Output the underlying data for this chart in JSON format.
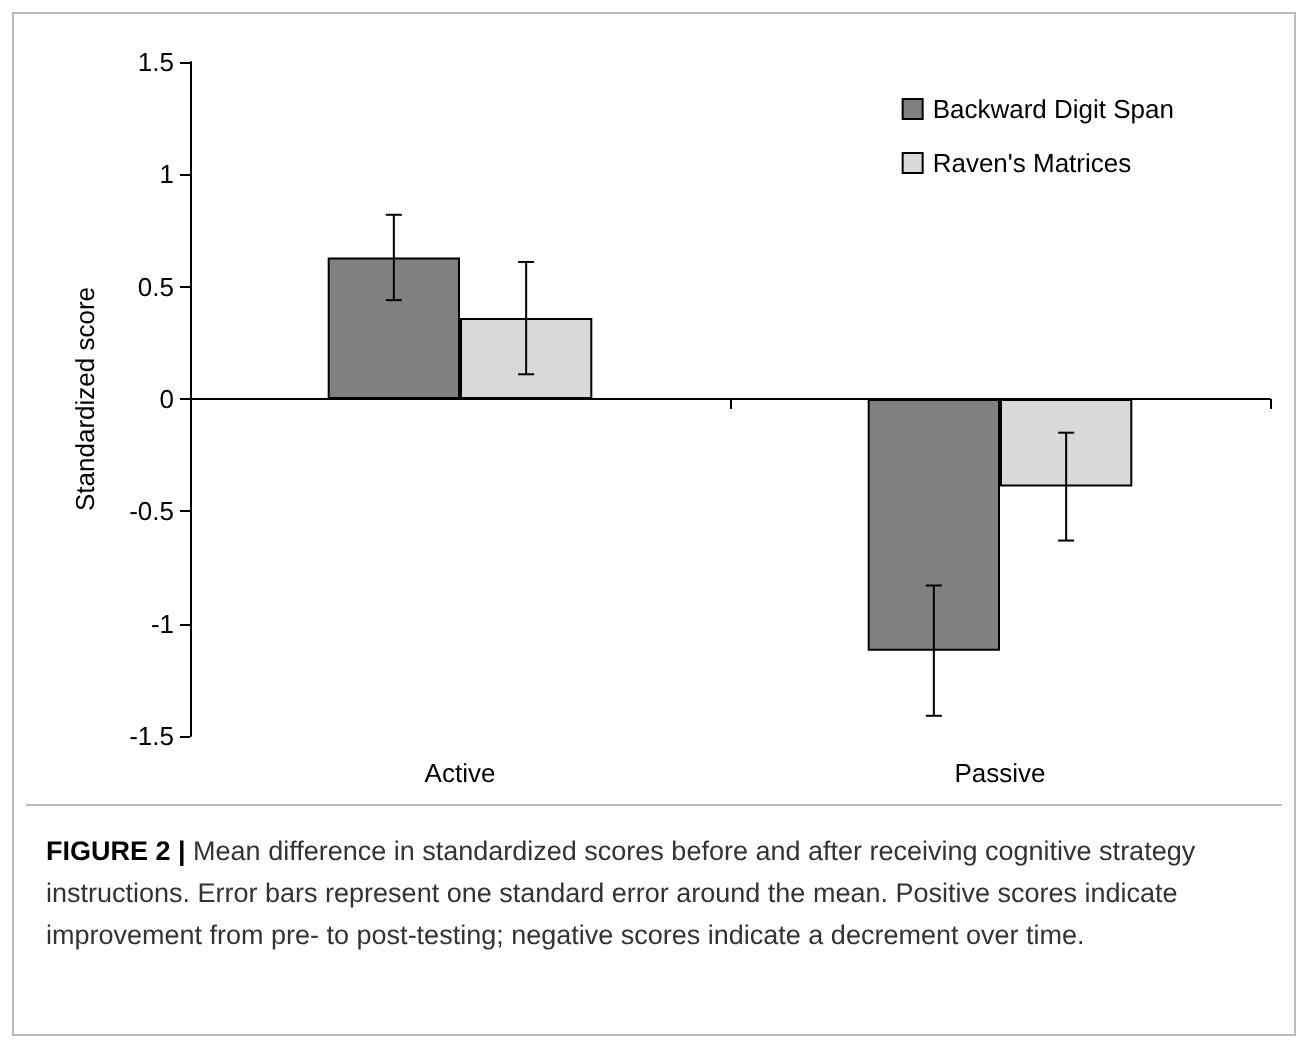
{
  "chart_data": {
    "type": "bar",
    "ylabel": "Standardized score",
    "categories": [
      "Active",
      "Passive"
    ],
    "series": [
      {
        "name": "Backward Digit Span",
        "color": "#808080",
        "values": [
          0.63,
          -1.12
        ],
        "errors": [
          0.19,
          0.29
        ]
      },
      {
        "name": "Raven's Matrices",
        "color": "#d9d9d9",
        "values": [
          0.36,
          -0.39
        ],
        "errors": [
          0.25,
          0.24
        ]
      }
    ],
    "ylim": [
      -1.5,
      1.5
    ],
    "yticks": [
      {
        "value": -1.5,
        "label": "-1.5"
      },
      {
        "value": -1,
        "label": "-1"
      },
      {
        "value": -0.5,
        "label": "-0.5"
      },
      0,
      0.5,
      1,
      1.5
    ],
    "legend": "top right",
    "annotations": [
      "FIGURE 2 |",
      "Mean difference in standardized scores before and after receiving cognitive strategy instructions. Error bars represent one standard error around the mean. Positive scores indicate improvement from pre- to post-testing; negative scores indicate a decrement over time."
    ]
  }
}
